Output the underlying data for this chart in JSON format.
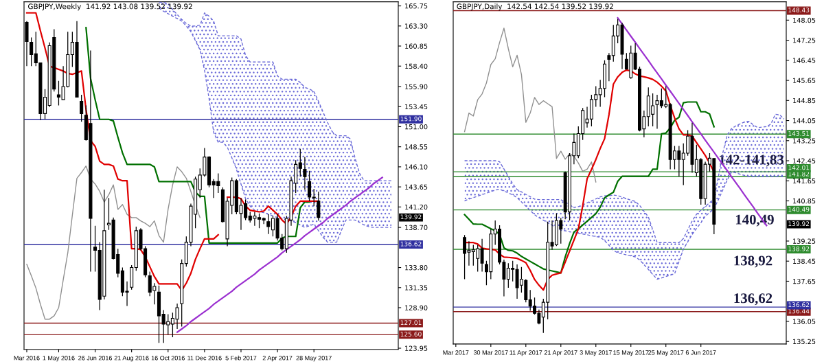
{
  "chart_data": [
    {
      "type": "candlestick",
      "title": "GBPJPY,Weekly  141.92 143.08 139.52 139.92",
      "categories": [
        "Mar 2016",
        null,
        null,
        null,
        null,
        null,
        null,
        "1 May 2016",
        null,
        null,
        null,
        null,
        null,
        null,
        null,
        "26 Jun 2016",
        null,
        null,
        null,
        null,
        null,
        null,
        null,
        "21 Aug 2016",
        null,
        null,
        null,
        null,
        null,
        null,
        null,
        "16 Oct 2016",
        null,
        null,
        null,
        null,
        null,
        null,
        null,
        "11 Dec 2016",
        null,
        null,
        null,
        null,
        null,
        null,
        null,
        "5 Feb 2017",
        null,
        null,
        null,
        null,
        null,
        null,
        null,
        "2 Apr 2017",
        null,
        null,
        null,
        null,
        null,
        null,
        null,
        "28 May 2017",
        null,
        null,
        null,
        null,
        null,
        null,
        null,
        null,
        null,
        null,
        null,
        null,
        null,
        null,
        null,
        null,
        null,
        null
      ],
      "ohlc": [
        [
          163.75,
          163.9,
          158.4,
          161.4
        ],
        [
          161.3,
          161.9,
          158.4,
          159.8
        ],
        [
          159.9,
          162.6,
          158.4,
          158.8
        ],
        [
          158.8,
          158.8,
          151.8,
          152.6
        ],
        [
          152.6,
          155.6,
          151.9,
          154.6
        ],
        [
          153.6,
          161.3,
          153.4,
          160.9
        ],
        [
          161.9,
          162.9,
          155.3,
          155.6
        ],
        [
          154.9,
          156.6,
          153.6,
          154.6
        ],
        [
          154.3,
          158.4,
          154.3,
          155.9
        ],
        [
          155.9,
          162.6,
          155.8,
          159.8
        ],
        [
          159.8,
          162.6,
          158.3,
          161.3
        ],
        [
          161.3,
          163.9,
          154.6,
          154.6
        ],
        [
          154.1,
          154.9,
          151.6,
          152.6
        ],
        [
          152.4,
          153.6,
          149.3,
          149.4
        ],
        [
          151.4,
          160.3,
          133.3,
          139.8
        ],
        [
          136.3,
          138.9,
          133.3,
          135.9
        ],
        [
          135.9,
          136.9,
          128.6,
          129.9
        ],
        [
          130.3,
          143.3,
          129.9,
          138.3
        ],
        [
          139.0,
          142.3,
          138.4,
          139.2
        ],
        [
          139.6,
          139.9,
          134.8,
          134.9
        ],
        [
          135.4,
          136.1,
          132.6,
          133.1
        ],
        [
          133.4,
          133.8,
          130.3,
          130.8
        ],
        [
          130.8,
          132.1,
          129.1,
          130.9
        ],
        [
          131.4,
          134.1,
          131.1,
          133.8
        ],
        [
          133.8,
          138.8,
          133.4,
          138.3
        ],
        [
          138.4,
          138.6,
          135.9,
          136.1
        ],
        [
          136.1,
          136.4,
          132.6,
          132.9
        ],
        [
          132.8,
          133.3,
          130.3,
          130.8
        ],
        [
          131.0,
          131.9,
          129.3,
          131.5
        ],
        [
          130.8,
          131.6,
          124.6,
          127.9
        ],
        [
          128.1,
          128.6,
          124.6,
          126.9
        ],
        [
          126.8,
          128.1,
          125.6,
          127.2
        ],
        [
          126.9,
          128.3,
          125.3,
          127.6
        ],
        [
          127.5,
          129.4,
          126.3,
          128.9
        ],
        [
          129.4,
          134.8,
          126.6,
          134.3
        ],
        [
          134.3,
          137.6,
          133.9,
          136.9
        ],
        [
          136.9,
          141.6,
          136.4,
          141.3
        ],
        [
          140.3,
          144.9,
          138.6,
          144.6
        ],
        [
          143.3,
          145.9,
          142.3,
          145.1
        ],
        [
          145.1,
          148.4,
          144.9,
          147.3
        ],
        [
          147.3,
          147.4,
          143.6,
          143.9
        ],
        [
          144.3,
          144.6,
          142.3,
          143.9
        ],
        [
          144.3,
          145.3,
          142.9,
          143.8
        ],
        [
          143.3,
          143.6,
          139.3,
          139.4
        ],
        [
          137.3,
          142.3,
          136.4,
          141.9
        ],
        [
          141.4,
          144.8,
          140.3,
          144.4
        ],
        [
          144.4,
          144.6,
          140.3,
          140.6
        ],
        [
          140.4,
          142.3,
          138.4,
          141.4
        ],
        [
          141.6,
          142.1,
          139.6,
          139.9
        ],
        [
          140.1,
          140.6,
          139.3,
          139.6
        ],
        [
          139.8,
          140.6,
          138.9,
          140.1
        ],
        [
          139.9,
          140.4,
          138.6,
          139.7
        ],
        [
          139.8,
          139.9,
          139.1,
          139.6
        ],
        [
          139.4,
          140.3,
          137.9,
          138.8
        ],
        [
          138.4,
          140.1,
          137.6,
          139.8
        ],
        [
          139.8,
          140.3,
          137.1,
          137.4
        ],
        [
          137.4,
          137.9,
          135.9,
          136.1
        ],
        [
          136.1,
          140.1,
          135.6,
          139.8
        ],
        [
          139.6,
          144.9,
          138.9,
          144.4
        ],
        [
          144.1,
          146.9,
          142.9,
          146.4
        ],
        [
          146.6,
          148.3,
          144.9,
          145.9
        ],
        [
          145.8,
          147.3,
          143.3,
          144.9
        ],
        [
          144.3,
          145.6,
          141.9,
          142.4
        ],
        [
          142.4,
          143.4,
          141.3,
          142.3
        ],
        [
          141.92,
          143.08,
          139.52,
          139.92
        ],
        null,
        null,
        null,
        null,
        null,
        null,
        null,
        null,
        null,
        null,
        null,
        null,
        null,
        null,
        null,
        null,
        null
      ],
      "series": [
        {
          "type": "line",
          "line_style": "dashed",
          "color": "#6a6ad8",
          "values": [
            null,
            null,
            null,
            null,
            null,
            null,
            null,
            null,
            null,
            null,
            null,
            null,
            null,
            null,
            null,
            null,
            null,
            null,
            null,
            null,
            null,
            null,
            null,
            null,
            null,
            null,
            null,
            null,
            null,
            166.2,
            166.2,
            166.0,
            165.3,
            164.7,
            164.1,
            163.6,
            163.3,
            163.3,
            163.4,
            164.9,
            164.5,
            163.9,
            162.1,
            162.1,
            162.1,
            162.1,
            162.1,
            161.7,
            159.7,
            158.9,
            158.9,
            158.9,
            158.9,
            158.9,
            158.9,
            157.2,
            156.8,
            156.8,
            156.8,
            156.8,
            156.4,
            155.8,
            155.6,
            155.3,
            154.1,
            152.8,
            151.5,
            150.4,
            149.9,
            149.9,
            149.9,
            149.5,
            147.2,
            145.3,
            144.4,
            144.4,
            144.4,
            144.4,
            144.4,
            144.4,
            144.4,
            null
          ]
        },
        {
          "type": "line",
          "line_style": "dashed",
          "color": "#6a6ad8",
          "values": [
            null,
            null,
            null,
            null,
            null,
            null,
            null,
            null,
            null,
            null,
            null,
            null,
            null,
            null,
            null,
            null,
            null,
            null,
            null,
            null,
            null,
            null,
            null,
            null,
            null,
            null,
            null,
            null,
            null,
            165.5,
            165.1,
            164.8,
            164.5,
            164.2,
            163.9,
            163.3,
            162.6,
            161.5,
            160.4,
            157.9,
            154.4,
            150.3,
            149.1,
            149.1,
            148.5,
            147.2,
            145.8,
            144.0,
            142.2,
            141.3,
            140.8,
            140.6,
            140.5,
            140.3,
            140.1,
            139.9,
            139.8,
            139.6,
            139.5,
            139.3,
            139.0,
            138.7,
            138.9,
            139.1,
            138.3,
            137.5,
            136.9,
            136.9,
            136.9,
            138.3,
            139.6,
            139.6,
            139.6,
            139.3,
            139.0,
            138.8,
            138.7,
            138.7,
            138.7,
            138.7,
            138.7,
            null
          ]
        },
        {
          "type": "line",
          "color": "#909090",
          "values": [
            134.2,
            132.8,
            131.3,
            129.3,
            127.5,
            127.5,
            127.9,
            128.9,
            132.3,
            135.6,
            140.2,
            144.7,
            145.4,
            146.2,
            144.6,
            144.0,
            143.1,
            141.8,
            142.7,
            143.9,
            140.9,
            141.5,
            140.3,
            139.9,
            139.9,
            139.5,
            139.2,
            138.8,
            139.5,
            137.7,
            136.9,
            140.9,
            143.9,
            146.1,
            145.5,
            144.7,
            143.1,
            141.4,
            139.9,
            null,
            null,
            null,
            null,
            null,
            null,
            null,
            null,
            null,
            null,
            null,
            null,
            null,
            null,
            null,
            null,
            null,
            null,
            null,
            null,
            null,
            null,
            null,
            null,
            null,
            null,
            null,
            null,
            null,
            null,
            null,
            null,
            null,
            null,
            null,
            null,
            null,
            null,
            null,
            null,
            null,
            null,
            null
          ]
        },
        {
          "type": "line",
          "color": "#007000",
          "values": [
            null,
            null,
            null,
            null,
            null,
            null,
            null,
            null,
            null,
            null,
            null,
            null,
            null,
            163.1,
            156.9,
            154.3,
            151.9,
            151.9,
            151.9,
            151.7,
            149.7,
            147.8,
            146.4,
            146.4,
            146.4,
            146.4,
            146.4,
            146.4,
            146.1,
            144.3,
            144.3,
            144.3,
            144.3,
            144.3,
            144.3,
            144.3,
            144.3,
            143.0,
            142.5,
            142.5,
            136.8,
            136.8,
            136.8,
            136.8,
            136.8,
            136.8,
            136.8,
            136.8,
            136.8,
            136.8,
            136.8,
            136.8,
            136.8,
            136.8,
            136.8,
            136.8,
            137.4,
            137.6,
            137.6,
            137.6,
            141.1,
            141.8,
            141.8,
            null,
            null,
            null,
            null,
            null,
            null,
            null,
            null,
            null,
            null,
            null,
            null,
            null,
            null,
            null,
            null,
            null,
            null,
            null
          ]
        },
        {
          "type": "line",
          "color": "#e00000",
          "values": [
            164.9,
            164.9,
            164.9,
            162.7,
            160.6,
            158.4,
            158.2,
            158.0,
            157.8,
            157.5,
            157.4,
            157.6,
            157.8,
            153.1,
            149.3,
            148.6,
            146.8,
            146.4,
            146.4,
            146.2,
            144.6,
            144.4,
            144.4,
            136.1,
            136.1,
            136.0,
            135.1,
            133.9,
            132.7,
            131.8,
            131.8,
            131.8,
            131.8,
            131.8,
            131.0,
            131.9,
            133.1,
            134.8,
            136.1,
            137.3,
            137.3,
            137.3,
            137.8,
            null,
            142.4,
            142.4,
            142.4,
            142.2,
            141.3,
            140.8,
            140.7,
            140.6,
            140.7,
            141.3,
            140.8,
            140.3,
            139.6,
            139.1,
            140.0,
            141.3,
            141.9,
            141.9,
            141.9,
            141.9,
            141.9,
            null,
            null,
            null,
            null,
            null,
            null,
            null,
            null,
            null,
            null,
            null,
            null,
            null,
            null,
            null,
            null,
            null
          ]
        },
        {
          "type": "line",
          "color": "#9b30d0",
          "values": [
            null,
            null,
            null,
            null,
            null,
            null,
            null,
            null,
            null,
            null,
            null,
            null,
            null,
            null,
            null,
            null,
            null,
            null,
            null,
            null,
            null,
            null,
            null,
            null,
            null,
            null,
            null,
            null,
            null,
            null,
            null,
            null,
            null,
            125.9,
            126.3,
            126.7,
            127.2,
            127.6,
            128.0,
            128.4,
            128.8,
            129.3,
            129.7,
            130.1,
            130.5,
            130.9,
            131.4,
            131.8,
            132.2,
            132.6,
            133.0,
            133.5,
            133.9,
            134.3,
            134.7,
            135.1,
            135.6,
            136.0,
            136.4,
            136.8,
            137.2,
            137.7,
            138.1,
            138.5,
            138.9,
            139.3,
            139.8,
            140.2,
            140.6,
            141.0,
            141.4,
            141.9,
            142.3,
            142.7,
            143.1,
            143.5,
            144.0,
            144.4,
            144.8,
            null,
            null,
            null
          ]
        }
      ],
      "ref_lines": [
        {
          "axis": "y",
          "value": 151.9,
          "label": "151.90",
          "color": "#3030a0"
        },
        {
          "axis": "y",
          "value": 136.62,
          "label": "136.62",
          "color": "#3030a0"
        },
        {
          "axis": "y",
          "value": 127.01,
          "label": "127.01",
          "color": "#8b1a1a"
        },
        {
          "axis": "y",
          "value": 125.6,
          "label": "125.60",
          "color": "#8b1a1a"
        }
      ],
      "annotations": [
        "139.92"
      ],
      "ylim": [
        123.8,
        166.25
      ],
      "yticks": [
        {
          "value": 165.75,
          "label": "165.75"
        },
        {
          "value": 163.3,
          "label": "163.30"
        },
        {
          "value": 160.85,
          "label": "160.85"
        },
        {
          "value": 158.4,
          "label": "158.40"
        },
        {
          "value": 155.9,
          "label": "155.90"
        },
        {
          "value": 153.45,
          "label": "153.45"
        },
        {
          "value": 151.0,
          "label": "151.00"
        },
        {
          "value": 148.55,
          "label": "148.55"
        },
        {
          "value": 146.1,
          "label": "146.10"
        },
        {
          "value": 143.65,
          "label": "143.65"
        },
        {
          "value": 141.2,
          "label": "141.20"
        },
        {
          "value": 138.7,
          "label": "138.70"
        },
        {
          "value": 133.8,
          "label": "133.80"
        },
        {
          "value": 131.35,
          "label": "131.35"
        },
        {
          "value": 128.9,
          "label": "128.90"
        },
        {
          "value": 123.95,
          "label": "123.95"
        }
      ]
    },
    {
      "type": "candlestick",
      "title": "GBPJPY,Daily  142.54 142.54 139.52 139.92",
      "categories": [
        "Mar 2017",
        null,
        null,
        null,
        null,
        null,
        null,
        null,
        "30 Mar 2017",
        null,
        null,
        null,
        null,
        null,
        null,
        null,
        "11 Apr 2017",
        null,
        null,
        null,
        null,
        null,
        null,
        null,
        "21 Apr 2017",
        null,
        null,
        null,
        null,
        null,
        null,
        null,
        "3 May 2017",
        null,
        null,
        null,
        null,
        null,
        null,
        null,
        "15 May 2017",
        null,
        null,
        null,
        null,
        null,
        null,
        null,
        "25 May 2017",
        null,
        null,
        null,
        null,
        null,
        null,
        null,
        "6 Jun 2017",
        null,
        null,
        null,
        null,
        null,
        null,
        null,
        null,
        null,
        null,
        null,
        null,
        null,
        null,
        null,
        null,
        null,
        null,
        null
      ],
      "ohlc": [
        null,
        null,
        [
          139.39,
          139.49,
          137.73,
          138.76
        ],
        [
          138.81,
          139.24,
          138.27,
          138.88
        ],
        [
          138.83,
          139.1,
          138.27,
          138.9
        ],
        [
          138.56,
          139.1,
          138.03,
          138.95
        ],
        [
          138.95,
          139.34,
          138.03,
          138.37
        ],
        [
          138.32,
          138.46,
          137.49,
          138.03
        ],
        [
          138.03,
          139.73,
          137.73,
          139.53
        ],
        [
          139.53,
          140.07,
          139.1,
          139.73
        ],
        [
          139.73,
          139.88,
          138.32,
          138.41
        ],
        [
          138.41,
          138.51,
          137.05,
          137.73
        ],
        [
          137.73,
          138.37,
          137.39,
          138.17
        ],
        [
          138.17,
          138.46,
          137.64,
          138.12
        ],
        [
          138.12,
          138.32,
          136.95,
          137.39
        ],
        [
          137.49,
          138.22,
          137.2,
          137.73
        ],
        [
          137.68,
          137.73,
          136.81,
          136.91
        ],
        [
          136.91,
          137.3,
          136.47,
          136.66
        ],
        [
          136.66,
          137.0,
          136.32,
          136.37
        ],
        [
          136.37,
          136.52,
          135.93,
          135.98
        ],
        [
          136.22,
          136.95,
          135.59,
          136.81
        ],
        [
          136.81,
          140.02,
          136.13,
          139.2
        ],
        [
          139.2,
          140.07,
          138.9,
          139.05
        ],
        [
          139.1,
          140.36,
          139.05,
          140.07
        ],
        [
          140.07,
          140.17,
          139.15,
          139.73
        ],
        [
          141.97,
          142.02,
          140.12,
          140.41
        ],
        [
          140.41,
          142.75,
          140.07,
          142.65
        ],
        [
          142.65,
          143.53,
          142.31,
          143.18
        ],
        [
          142.65,
          143.82,
          142.55,
          143.53
        ],
        [
          143.53,
          144.55,
          143.28,
          144.45
        ],
        [
          143.96,
          144.6,
          143.77,
          144.11
        ],
        [
          144.11,
          145.08,
          143.82,
          144.89
        ],
        [
          144.89,
          145.42,
          144.6,
          145.08
        ],
        [
          145.08,
          145.67,
          144.6,
          145.33
        ],
        [
          145.33,
          146.45,
          144.98,
          146.3
        ],
        [
          146.64,
          146.74,
          145.62,
          146.49
        ],
        [
          146.64,
          147.86,
          146.4,
          147.42
        ],
        [
          147.42,
          148.1,
          147.13,
          147.86
        ],
        [
          147.86,
          147.95,
          146.1,
          146.69
        ],
        [
          146.49,
          146.74,
          146.1,
          146.1
        ],
        [
          145.76,
          147.03,
          145.71,
          146.74
        ],
        [
          146.74,
          147.13,
          146.06,
          146.1
        ],
        [
          146.1,
          146.2,
          143.62,
          143.67
        ],
        [
          143.72,
          144.45,
          143.38,
          144.21
        ],
        [
          144.21,
          145.37,
          143.82,
          145.03
        ],
        [
          144.3,
          145.13,
          143.82,
          144.64
        ],
        [
          144.69,
          145.08,
          143.72,
          144.84
        ],
        [
          144.84,
          145.33,
          144.55,
          144.64
        ],
        [
          144.62,
          145.42,
          144.55,
          144.69
        ],
        [
          144.69,
          144.74,
          142.11,
          142.5
        ],
        [
          142.5,
          143.04,
          142.11,
          142.84
        ],
        [
          142.84,
          143.04,
          141.82,
          142.5
        ],
        [
          142.5,
          143.14,
          141.48,
          142.75
        ],
        [
          142.75,
          143.67,
          142.65,
          143.43
        ],
        [
          143.43,
          143.96,
          141.97,
          142.31
        ],
        [
          141.97,
          143.09,
          141.82,
          142.5
        ],
        [
          142.5,
          142.55,
          140.7,
          140.94
        ],
        [
          140.94,
          142.41,
          140.7,
          142.31
        ],
        [
          142.31,
          142.75,
          142.02,
          142.55
        ],
        [
          142.54,
          142.54,
          139.52,
          139.92
        ],
        null,
        null,
        null,
        null,
        null,
        null,
        null,
        null,
        null,
        null,
        null,
        null,
        null,
        null,
        null,
        null
      ],
      "series": [
        {
          "type": "line",
          "line_style": "dashed",
          "color": "#6a6ad8",
          "values": [
            null,
            null,
            142.45,
            142.45,
            142.45,
            142.45,
            142.45,
            142.45,
            142.45,
            142.45,
            142.41,
            142.12,
            141.82,
            141.53,
            141.3,
            141.21,
            141.11,
            141.02,
            140.92,
            140.9,
            140.9,
            140.9,
            140.9,
            140.9,
            140.9,
            140.8,
            140.7,
            140.59,
            140.62,
            140.69,
            140.77,
            140.85,
            140.93,
            141.01,
            141.05,
            141.06,
            141.08,
            141.06,
            141.0,
            140.94,
            140.88,
            140.83,
            140.67,
            140.44,
            140.21,
            139.7,
            139.19,
            139.19,
            139.19,
            139.19,
            139.19,
            139.19,
            139.35,
            139.7,
            140.05,
            140.32,
            140.48,
            140.63,
            140.78,
            140.93,
            141.82,
            142.76,
            143.47,
            143.73,
            143.84,
            143.92,
            144.0,
            144.02,
            143.87,
            143.77,
            143.79,
            143.81,
            143.91,
            144.3,
            144.28,
            144.11
          ]
        },
        {
          "type": "line",
          "line_style": "dashed",
          "color": "#6a6ad8",
          "values": [
            null,
            null,
            140.85,
            140.92,
            140.98,
            141.04,
            141.1,
            141.16,
            141.22,
            141.28,
            141.32,
            141.24,
            141.17,
            141.09,
            140.98,
            140.81,
            140.64,
            140.47,
            140.3,
            140.18,
            140.08,
            139.98,
            139.88,
            139.78,
            139.68,
            139.66,
            139.62,
            139.59,
            139.56,
            139.53,
            139.5,
            139.46,
            139.43,
            139.4,
            139.27,
            139.08,
            138.88,
            138.78,
            138.74,
            138.7,
            138.66,
            138.62,
            138.5,
            138.31,
            138.12,
            137.92,
            137.73,
            137.78,
            137.84,
            137.89,
            137.95,
            138.43,
            138.93,
            139.22,
            139.51,
            139.75,
            139.98,
            140.24,
            140.39,
            140.54,
            140.9,
            141.28,
            141.67,
            142.0,
            141.97,
            141.91,
            141.86,
            141.82,
            141.82,
            141.82,
            141.82,
            141.82,
            141.82,
            141.82,
            141.82,
            141.82
          ]
        },
        {
          "type": "line",
          "color": "#909090",
          "values": [
            null,
            null,
            143.61,
            144.35,
            144.23,
            144.88,
            145.11,
            145.55,
            146.28,
            146.51,
            147.16,
            147.73,
            146.91,
            146.19,
            146.65,
            145.88,
            143.98,
            144.35,
            144.97,
            144.69,
            144.84,
            144.72,
            144.6,
            142.54,
            142.83,
            142.51,
            142.73,
            142.63,
            142.36,
            142.03,
            142.11,
            142.4,
            141.6,
            null,
            null,
            null,
            null,
            null,
            null,
            null,
            null,
            null,
            null,
            null,
            null,
            null,
            null,
            null,
            null,
            null,
            null,
            null,
            null,
            null,
            null,
            null,
            null,
            null,
            null,
            null,
            null,
            null,
            null,
            null,
            null,
            null,
            null,
            null,
            null,
            null,
            null,
            null,
            null,
            null,
            null,
            null
          ]
        },
        {
          "type": "line",
          "color": "#007000",
          "values": [
            null,
            null,
            140.3,
            140.12,
            139.93,
            139.92,
            139.92,
            139.83,
            139.74,
            139.66,
            139.52,
            138.98,
            138.88,
            138.86,
            138.77,
            138.64,
            138.54,
            138.44,
            138.34,
            138.24,
            138.14,
            138.1,
            138.06,
            138.02,
            137.98,
            138.62,
            139.15,
            139.61,
            139.74,
            139.89,
            140.04,
            140.19,
            140.34,
            140.6,
            140.97,
            141.09,
            141.19,
            141.63,
            141.83,
            141.83,
            141.83,
            141.83,
            141.83,
            141.83,
            141.83,
            142.11,
            142.11,
            143.52,
            143.55,
            143.76,
            144.06,
            144.18,
            144.76,
            144.79,
            144.79,
            144.79,
            144.4,
            144.4,
            144.31,
            143.8,
            null,
            null,
            null,
            null,
            null,
            null,
            null,
            null,
            null,
            null,
            null,
            null,
            null,
            null,
            null,
            null
          ]
        },
        {
          "type": "line",
          "color": "#e00000",
          "values": [
            null,
            null,
            139.19,
            139.19,
            139.19,
            139.13,
            138.97,
            138.94,
            138.92,
            138.9,
            138.73,
            138.61,
            138.6,
            138.58,
            138.56,
            138.48,
            138.39,
            138.08,
            137.72,
            137.49,
            137.3,
            137.72,
            137.89,
            137.94,
            137.98,
            138.41,
            138.85,
            139.29,
            139.73,
            140.66,
            141.73,
            142.1,
            142.5,
            142.94,
            143.33,
            144.29,
            145.5,
            145.79,
            145.97,
            146.06,
            146.03,
            145.91,
            145.83,
            145.79,
            145.75,
            145.69,
            145.58,
            145.42,
            145.23,
            144.66,
            144.15,
            143.72,
            143.48,
            143.48,
            143.43,
            143.17,
            142.92,
            142.66,
            142.35,
            142.0,
            null,
            null,
            null,
            null,
            null,
            null,
            null,
            null,
            null,
            null,
            null,
            null,
            null,
            null,
            null,
            null
          ]
        },
        {
          "type": "line",
          "color": "#9b30d0",
          "values": [
            null,
            null,
            null,
            null,
            null,
            null,
            null,
            null,
            null,
            null,
            null,
            null,
            null,
            null,
            null,
            null,
            null,
            null,
            null,
            null,
            null,
            null,
            null,
            null,
            null,
            null,
            null,
            null,
            null,
            null,
            null,
            null,
            null,
            null,
            null,
            null,
            null,
            148.14,
            147.9,
            147.65,
            147.41,
            147.17,
            146.92,
            146.68,
            146.44,
            146.19,
            145.95,
            145.71,
            145.46,
            145.22,
            144.98,
            144.73,
            144.49,
            144.25,
            144.0,
            143.76,
            143.52,
            143.27,
            143.03,
            142.79,
            142.54,
            142.3,
            142.06,
            141.81,
            141.57,
            141.33,
            141.08,
            140.84,
            140.6,
            140.35,
            140.11,
            139.87,
            null,
            null,
            null,
            null
          ]
        }
      ],
      "ref_lines": [
        {
          "axis": "y",
          "value": 148.43,
          "label": "148.43",
          "color": "#8b1a1a"
        },
        {
          "axis": "y",
          "value": 143.51,
          "label": "143.51",
          "color": "#2e8b2e"
        },
        {
          "axis": "y",
          "value": 142.01,
          "label": "142.01",
          "color": "#2e8b2e"
        },
        {
          "axis": "y",
          "value": 141.82,
          "label": "141.82",
          "color": "#2e8b2e"
        },
        {
          "axis": "y",
          "value": 140.49,
          "label": "140.49",
          "color": "#2e8b2e"
        },
        {
          "axis": "y",
          "value": 138.92,
          "label": "138.92",
          "color": "#2e8b2e"
        },
        {
          "axis": "y",
          "value": 136.62,
          "label": "136.62",
          "color": "#3030a0"
        },
        {
          "axis": "y",
          "value": 136.44,
          "label": "136.44",
          "color": "#8b1a1a"
        }
      ],
      "annotations": [
        "139.92",
        "142-141,83",
        "140,49",
        "138,92",
        "136,62"
      ],
      "ylim": [
        135.15,
        148.78
      ],
      "yticks": [
        148.05,
        147.25,
        146.45,
        145.65,
        144.85,
        144.05,
        143.25,
        142.45,
        141.65,
        140.85,
        139.25,
        138.45,
        137.65,
        136.05,
        135.25
      ]
    }
  ]
}
